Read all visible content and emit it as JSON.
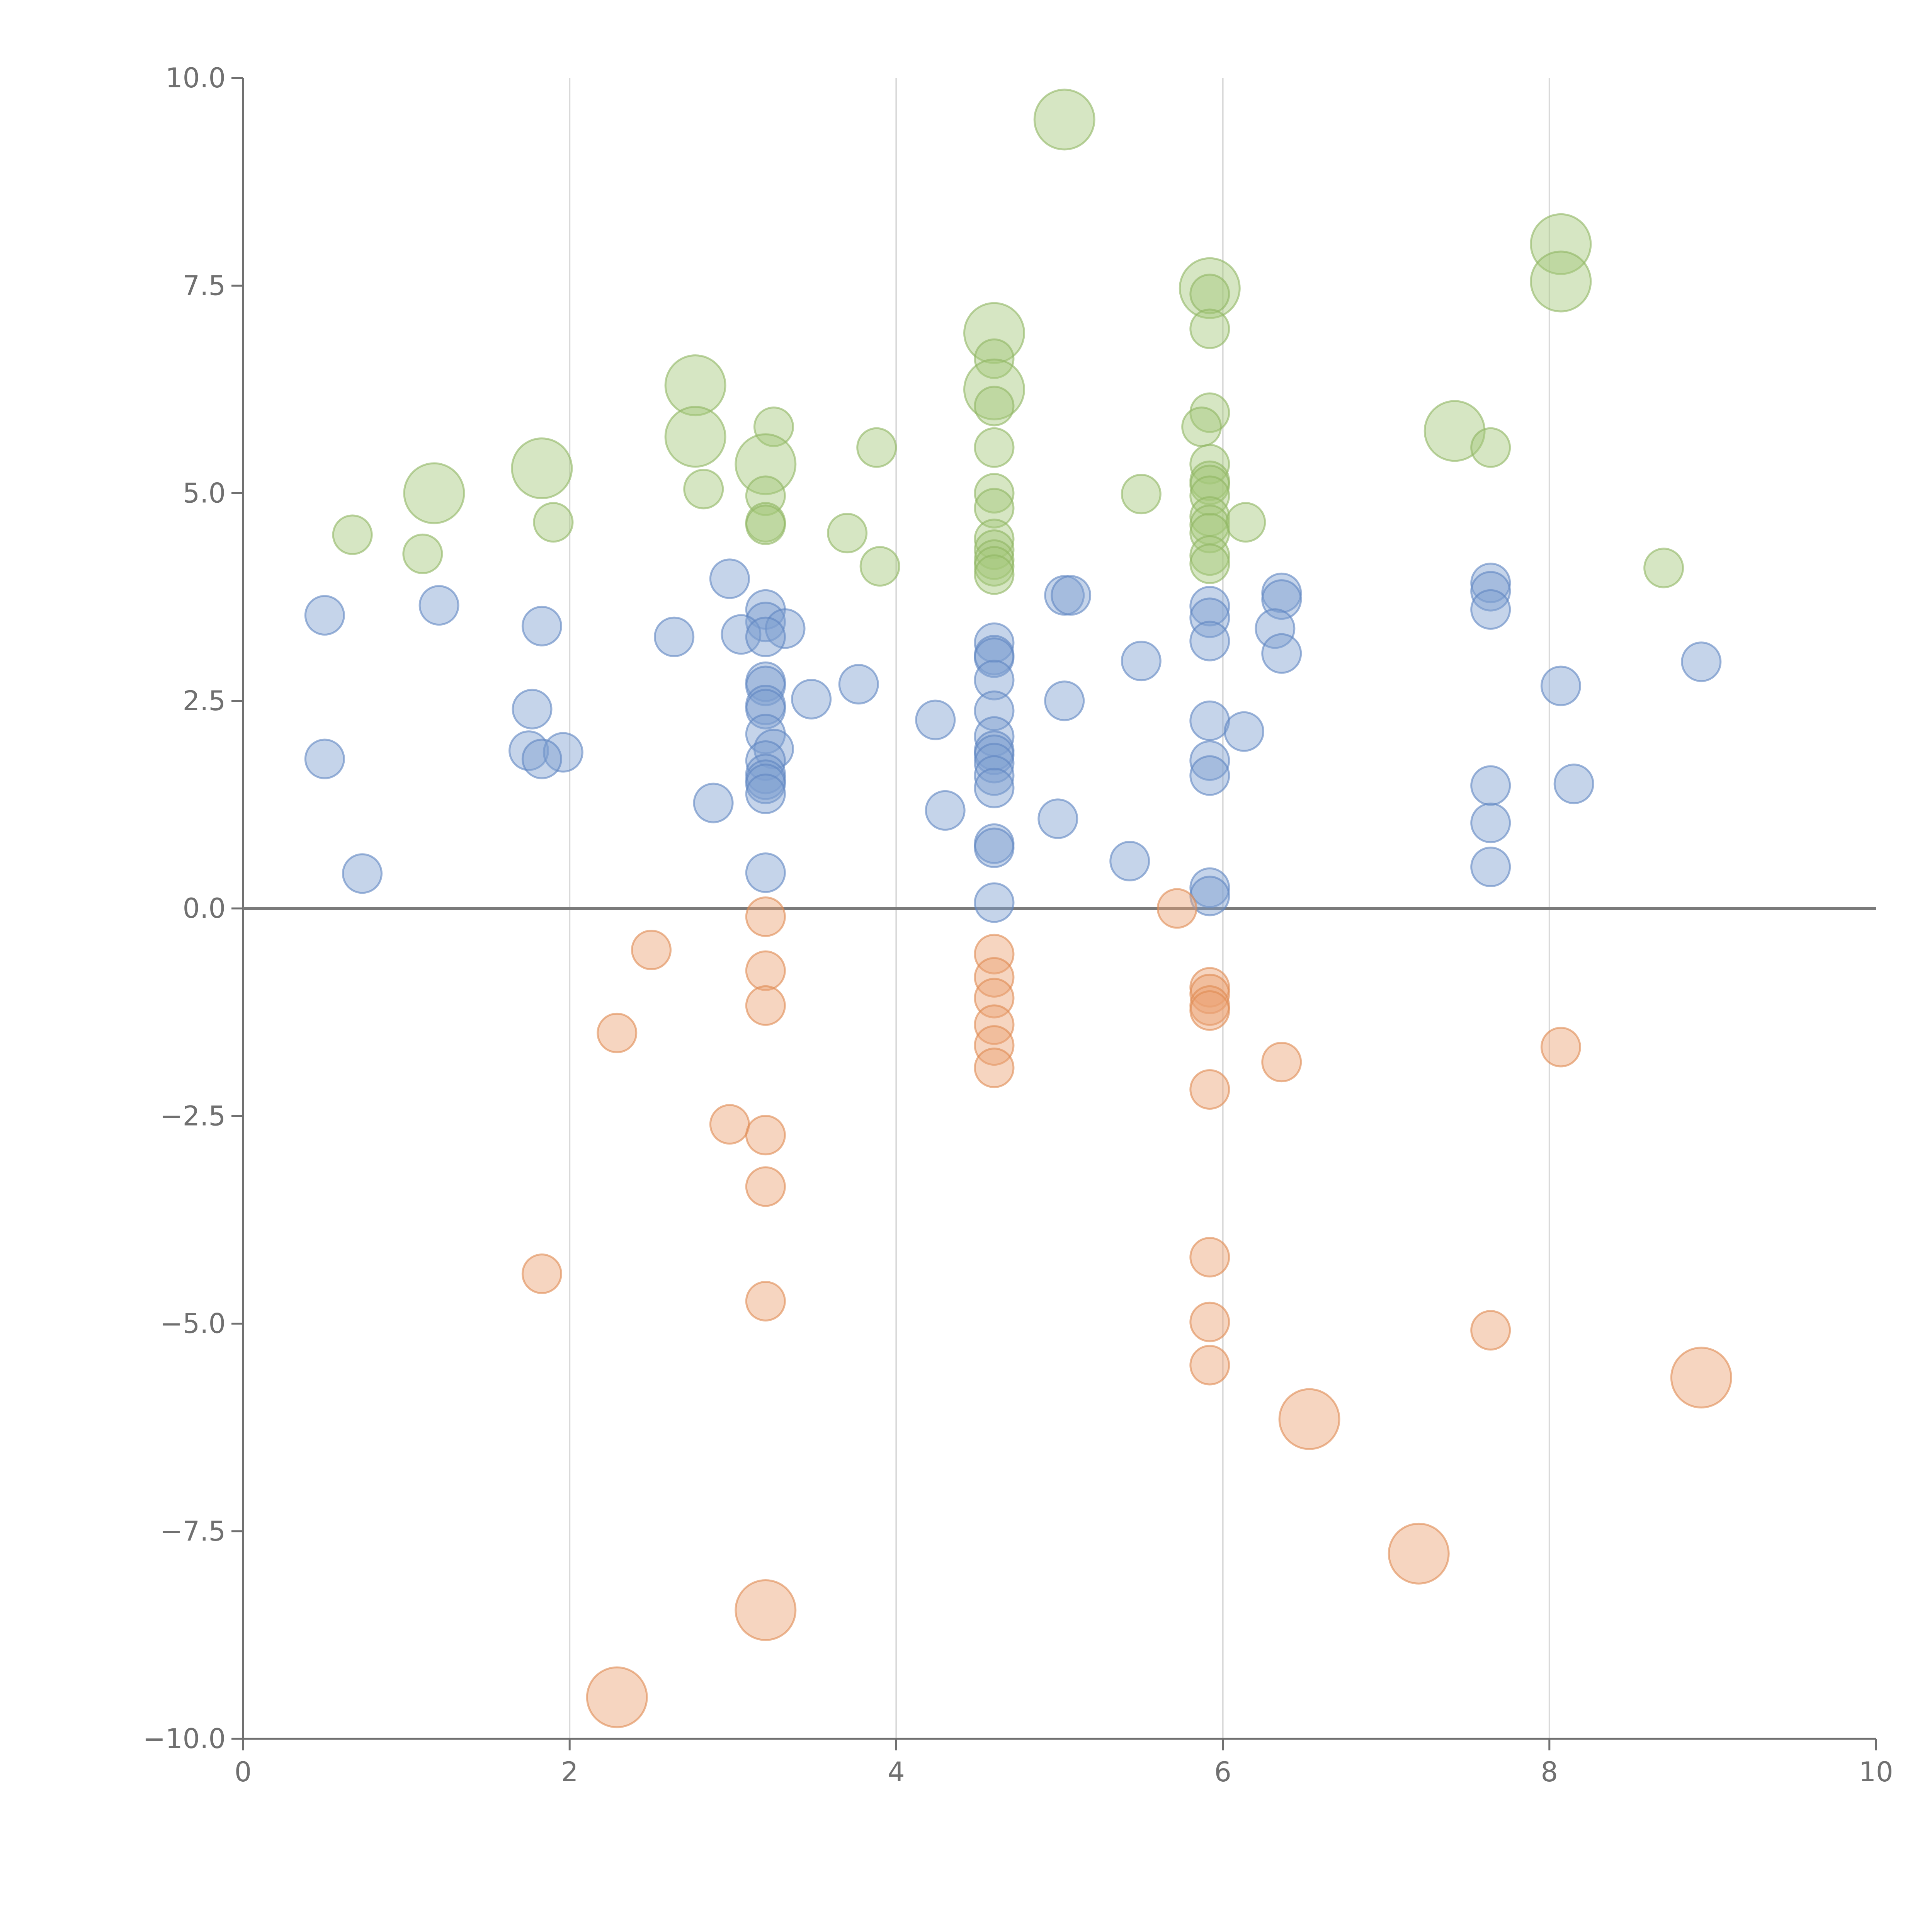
{
  "chart_data": {
    "type": "scatter",
    "title": "",
    "xlabel": "",
    "ylabel": "",
    "xlim": [
      0,
      10
    ],
    "ylim": [
      -10,
      10
    ],
    "x_ticks": [
      0,
      2,
      4,
      6,
      8,
      10
    ],
    "x_tick_labels": [
      "0",
      "2",
      "4",
      "6",
      "8",
      "10"
    ],
    "y_ticks": [
      10,
      7.5,
      5,
      2.5,
      0,
      -2.5,
      -5,
      -7.5,
      -10
    ],
    "y_tick_labels": [
      "10.0",
      "7.5",
      "5.0",
      "2.5",
      "0.0",
      "−2.5",
      "−5.0",
      "−7.5",
      "−10.0"
    ],
    "vertical_gridlines_at": [
      2,
      4,
      6,
      8
    ],
    "zero_line_y": 0,
    "colors": {
      "green": "#a5c879",
      "green_edge": "#8fb562",
      "blue": "#7f9fd0",
      "blue_edge": "#5f85c2",
      "orange": "#eba173",
      "orange_edge": "#e08a52",
      "axis": "#707070",
      "grid": "#d9d9d9",
      "zero_line": "#7a7a7a"
    },
    "large_bubble_size": 2.4,
    "series": [
      {
        "name": "green",
        "points": [
          [
            5.03,
            9.5,
            2.4
          ],
          [
            8.07,
            8.0,
            2.4
          ],
          [
            8.07,
            7.55,
            2.4
          ],
          [
            5.92,
            7.47,
            2.4
          ],
          [
            5.92,
            7.4,
            1
          ],
          [
            5.92,
            6.98,
            1
          ],
          [
            4.6,
            6.93,
            2.4
          ],
          [
            4.6,
            6.62,
            1
          ],
          [
            2.77,
            6.3,
            2.4
          ],
          [
            4.6,
            6.25,
            2.4
          ],
          [
            4.6,
            6.05,
            1
          ],
          [
            5.92,
            5.97,
            1
          ],
          [
            5.87,
            5.8,
            1
          ],
          [
            3.25,
            5.8,
            1
          ],
          [
            2.77,
            5.68,
            2.4
          ],
          [
            7.42,
            5.75,
            2.4
          ],
          [
            3.88,
            5.55,
            1
          ],
          [
            4.6,
            5.55,
            1
          ],
          [
            7.64,
            5.55,
            1
          ],
          [
            3.2,
            5.35,
            2.4
          ],
          [
            1.83,
            5.3,
            2.4
          ],
          [
            5.92,
            5.35,
            1
          ],
          [
            5.92,
            5.15,
            1
          ],
          [
            5.92,
            5.1,
            1
          ],
          [
            2.82,
            5.05,
            1
          ],
          [
            1.17,
            5.0,
            2.4
          ],
          [
            4.6,
            5.0,
            1
          ],
          [
            5.5,
            4.99,
            1
          ],
          [
            5.92,
            4.97,
            1
          ],
          [
            3.2,
            4.97,
            1
          ],
          [
            4.6,
            4.82,
            1
          ],
          [
            5.92,
            4.72,
            1
          ],
          [
            1.9,
            4.65,
            1
          ],
          [
            3.2,
            4.65,
            1
          ],
          [
            3.2,
            4.62,
            1
          ],
          [
            5.92,
            4.62,
            1
          ],
          [
            6.14,
            4.65,
            1
          ],
          [
            5.92,
            4.52,
            1
          ],
          [
            0.67,
            4.5,
            1
          ],
          [
            3.7,
            4.52,
            1
          ],
          [
            4.6,
            4.45,
            1
          ],
          [
            4.6,
            4.32,
            1
          ],
          [
            1.1,
            4.27,
            1
          ],
          [
            5.92,
            4.25,
            1
          ],
          [
            5.92,
            4.15,
            1
          ],
          [
            4.6,
            4.2,
            1
          ],
          [
            4.6,
            4.12,
            1
          ],
          [
            3.9,
            4.12,
            1
          ],
          [
            8.7,
            4.1,
            1
          ],
          [
            4.6,
            4.02,
            1
          ]
        ]
      },
      {
        "name": "blue",
        "points": [
          [
            2.98,
            3.97,
            1
          ],
          [
            7.64,
            3.92,
            1
          ],
          [
            7.64,
            3.82,
            1
          ],
          [
            6.36,
            3.8,
            1
          ],
          [
            5.03,
            3.77,
            1
          ],
          [
            5.07,
            3.77,
            1
          ],
          [
            6.36,
            3.72,
            1
          ],
          [
            1.2,
            3.65,
            1
          ],
          [
            5.92,
            3.64,
            1
          ],
          [
            3.2,
            3.6,
            1
          ],
          [
            7.64,
            3.6,
            1
          ],
          [
            0.5,
            3.53,
            1
          ],
          [
            5.92,
            3.5,
            1
          ],
          [
            3.2,
            3.45,
            1
          ],
          [
            1.83,
            3.4,
            1
          ],
          [
            3.32,
            3.37,
            1
          ],
          [
            6.32,
            3.37,
            1
          ],
          [
            3.05,
            3.3,
            1
          ],
          [
            2.64,
            3.27,
            1
          ],
          [
            3.2,
            3.27,
            1
          ],
          [
            5.92,
            3.22,
            1
          ],
          [
            4.6,
            3.2,
            1
          ],
          [
            4.6,
            3.05,
            1
          ],
          [
            4.6,
            3.02,
            1
          ],
          [
            6.36,
            3.07,
            1
          ],
          [
            5.5,
            2.98,
            1
          ],
          [
            8.93,
            2.97,
            1
          ],
          [
            4.6,
            2.75,
            1
          ],
          [
            3.2,
            2.73,
            1
          ],
          [
            3.2,
            2.68,
            1
          ],
          [
            3.77,
            2.7,
            1
          ],
          [
            8.07,
            2.68,
            1
          ],
          [
            3.48,
            2.52,
            1
          ],
          [
            5.03,
            2.5,
            1
          ],
          [
            3.2,
            2.45,
            1
          ],
          [
            3.2,
            2.4,
            1
          ],
          [
            1.77,
            2.4,
            1
          ],
          [
            4.6,
            2.38,
            1
          ],
          [
            4.24,
            2.27,
            1
          ],
          [
            5.92,
            2.26,
            1
          ],
          [
            6.13,
            2.13,
            1
          ],
          [
            3.2,
            2.1,
            1
          ],
          [
            4.6,
            2.07,
            1
          ],
          [
            1.75,
            1.9,
            1
          ],
          [
            1.96,
            1.88,
            1
          ],
          [
            3.25,
            1.92,
            1
          ],
          [
            4.6,
            1.9,
            1
          ],
          [
            4.6,
            1.85,
            1
          ],
          [
            1.83,
            1.8,
            1
          ],
          [
            0.5,
            1.8,
            1
          ],
          [
            3.2,
            1.78,
            1
          ],
          [
            5.92,
            1.78,
            1
          ],
          [
            4.6,
            1.75,
            1
          ],
          [
            3.2,
            1.62,
            1
          ],
          [
            5.92,
            1.6,
            1
          ],
          [
            4.6,
            1.6,
            1
          ],
          [
            3.2,
            1.55,
            1
          ],
          [
            3.2,
            1.5,
            1
          ],
          [
            7.64,
            1.48,
            1
          ],
          [
            8.15,
            1.5,
            1
          ],
          [
            4.6,
            1.45,
            1
          ],
          [
            3.2,
            1.38,
            1
          ],
          [
            2.88,
            1.27,
            1
          ],
          [
            4.3,
            1.18,
            1
          ],
          [
            4.99,
            1.08,
            1
          ],
          [
            7.64,
            1.03,
            1
          ],
          [
            4.6,
            0.78,
            1
          ],
          [
            4.6,
            0.73,
            1
          ],
          [
            5.43,
            0.57,
            1
          ],
          [
            7.64,
            0.5,
            1
          ],
          [
            0.73,
            0.42,
            1
          ],
          [
            3.2,
            0.43,
            1
          ],
          [
            5.92,
            0.25,
            1
          ],
          [
            5.92,
            0.15,
            1
          ],
          [
            4.6,
            0.07,
            1
          ]
        ]
      },
      {
        "name": "orange",
        "points": [
          [
            5.72,
            0.0,
            1
          ],
          [
            3.2,
            -0.1,
            1
          ],
          [
            2.5,
            -0.5,
            1
          ],
          [
            4.6,
            -0.55,
            1
          ],
          [
            3.2,
            -0.75,
            1
          ],
          [
            4.6,
            -0.83,
            1
          ],
          [
            5.92,
            -0.95,
            1
          ],
          [
            5.92,
            -1.03,
            1
          ],
          [
            4.6,
            -1.08,
            1
          ],
          [
            3.2,
            -1.17,
            1
          ],
          [
            5.92,
            -1.17,
            1
          ],
          [
            5.92,
            -1.23,
            1
          ],
          [
            4.6,
            -1.4,
            1
          ],
          [
            2.29,
            -1.5,
            1
          ],
          [
            4.6,
            -1.65,
            1
          ],
          [
            8.07,
            -1.67,
            1
          ],
          [
            6.36,
            -1.85,
            1
          ],
          [
            4.6,
            -1.92,
            1
          ],
          [
            5.92,
            -2.18,
            1
          ],
          [
            2.98,
            -2.6,
            1
          ],
          [
            3.2,
            -2.73,
            1
          ],
          [
            3.2,
            -3.35,
            1
          ],
          [
            5.92,
            -4.2,
            1
          ],
          [
            1.83,
            -4.4,
            1
          ],
          [
            3.2,
            -4.73,
            1
          ],
          [
            5.92,
            -4.98,
            1
          ],
          [
            7.64,
            -5.08,
            1
          ],
          [
            5.92,
            -5.5,
            1
          ],
          [
            8.93,
            -5.65,
            2.4
          ],
          [
            6.53,
            -6.15,
            2.4
          ],
          [
            7.2,
            -7.77,
            2.4
          ],
          [
            3.2,
            -8.45,
            2.4
          ],
          [
            2.29,
            -9.5,
            2.4
          ]
        ]
      }
    ]
  }
}
